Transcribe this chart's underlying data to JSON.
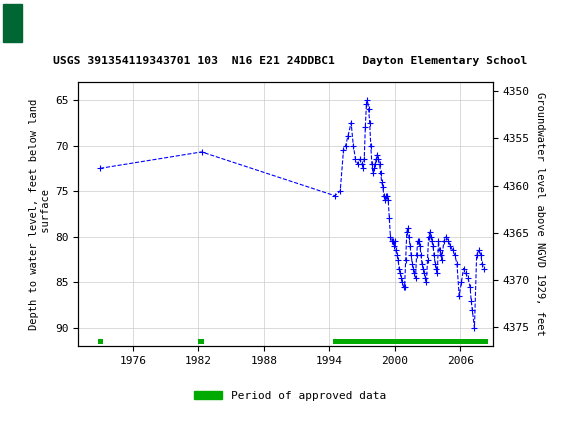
{
  "title": "USGS 391354119343701 103  N16 E21 24DDBC1    Dayton Elementary School",
  "ylabel_left": "Depth to water level, feet below land\n surface",
  "ylabel_right": "Groundwater level above NGVD 1929, feet",
  "ylim_left": [
    63,
    92
  ],
  "ylim_right": [
    4349,
    4377
  ],
  "xlim": [
    1971,
    2009
  ],
  "yticks_left": [
    65,
    70,
    75,
    80,
    85,
    90
  ],
  "yticks_right": [
    4350,
    4355,
    4360,
    4365,
    4370,
    4375
  ],
  "xticks": [
    1976,
    1982,
    1988,
    1994,
    2000,
    2006
  ],
  "background_color": "#ffffff",
  "plot_bg_color": "#ffffff",
  "grid_color": "#cccccc",
  "line_color": "#0000ff",
  "approved_color": "#00aa00",
  "header_bg": "#006633",
  "header_text": "  USGS",
  "legend_label": "Period of approved data",
  "data_x": [
    1973.0,
    1982.3,
    1994.5,
    1995.0,
    1995.3,
    1995.5,
    1995.7,
    1996.0,
    1996.2,
    1996.4,
    1996.6,
    1996.8,
    1997.0,
    1997.1,
    1997.2,
    1997.3,
    1997.4,
    1997.5,
    1997.6,
    1997.7,
    1997.8,
    1997.9,
    1998.0,
    1998.1,
    1998.2,
    1998.3,
    1998.4,
    1998.5,
    1998.6,
    1998.7,
    1998.8,
    1998.9,
    1999.0,
    1999.1,
    1999.2,
    1999.3,
    1999.4,
    1999.5,
    1999.6,
    1999.7,
    1999.8,
    1999.9,
    2000.0,
    2000.1,
    2000.2,
    2000.3,
    2000.4,
    2000.5,
    2000.6,
    2000.7,
    2000.8,
    2000.9,
    2001.0,
    2001.1,
    2001.2,
    2001.3,
    2001.4,
    2001.5,
    2001.6,
    2001.7,
    2001.8,
    2001.9,
    2002.0,
    2002.1,
    2002.2,
    2002.3,
    2002.4,
    2002.5,
    2002.6,
    2002.7,
    2002.8,
    2002.9,
    2003.0,
    2003.1,
    2003.2,
    2003.3,
    2003.4,
    2003.5,
    2003.6,
    2003.7,
    2003.8,
    2003.9,
    2004.0,
    2004.1,
    2004.2,
    2004.3,
    2004.5,
    2004.7,
    2004.9,
    2005.1,
    2005.3,
    2005.5,
    2005.7,
    2005.9,
    2006.1,
    2006.3,
    2006.5,
    2006.7,
    2006.9,
    2007.0,
    2007.1,
    2007.3,
    2007.5,
    2007.7,
    2007.9,
    2008.0,
    2008.2
  ],
  "data_y": [
    72.5,
    70.7,
    75.5,
    75.0,
    70.5,
    70.0,
    69.0,
    67.5,
    70.0,
    71.5,
    72.0,
    71.5,
    72.0,
    72.5,
    71.5,
    68.0,
    65.5,
    65.0,
    66.0,
    67.5,
    70.0,
    72.0,
    73.0,
    72.5,
    72.0,
    71.5,
    71.0,
    71.5,
    72.0,
    73.0,
    74.0,
    74.5,
    75.5,
    76.0,
    75.5,
    75.5,
    76.0,
    78.0,
    80.0,
    80.5,
    80.5,
    81.0,
    80.5,
    81.5,
    82.0,
    82.5,
    83.5,
    84.0,
    84.5,
    85.0,
    85.5,
    85.5,
    82.5,
    79.5,
    79.0,
    80.0,
    81.0,
    82.0,
    83.0,
    83.5,
    84.0,
    84.5,
    82.0,
    80.5,
    80.5,
    81.0,
    82.0,
    83.0,
    83.5,
    84.0,
    84.5,
    85.0,
    82.5,
    80.0,
    79.5,
    80.0,
    80.5,
    81.0,
    82.0,
    83.0,
    83.5,
    84.0,
    80.5,
    81.5,
    82.0,
    82.5,
    80.5,
    80.0,
    80.5,
    81.0,
    81.5,
    82.0,
    83.0,
    86.5,
    85.0,
    83.5,
    84.0,
    84.5,
    85.5,
    87.0,
    88.0,
    90.0,
    82.0,
    81.5,
    82.0,
    83.0,
    83.5
  ],
  "approved_bars": [
    {
      "start": 1972.8,
      "end": 1973.3
    },
    {
      "start": 1982.0,
      "end": 1982.5
    },
    {
      "start": 1994.3,
      "end": 2008.5
    }
  ]
}
